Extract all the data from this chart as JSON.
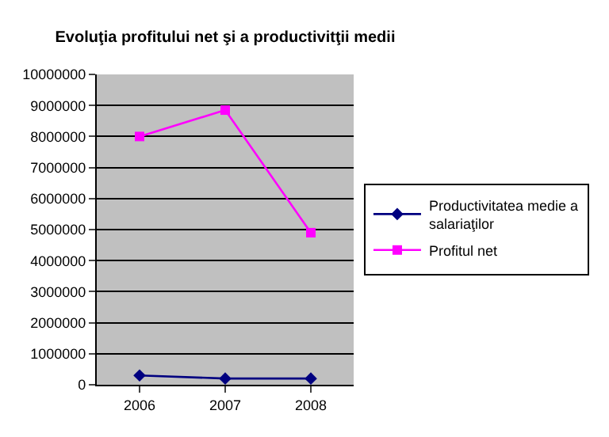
{
  "chart_data": {
    "type": "line",
    "title": "Evoluţia profitului net şi a productivitţii medii",
    "categories": [
      "2006",
      "2007",
      "2008"
    ],
    "series": [
      {
        "name": "Productivitatea medie a salariaţilor",
        "color": "#000080",
        "marker": "diamond",
        "values": [
          300000,
          200000,
          200000
        ]
      },
      {
        "name": "Profitul net",
        "color": "#ff00ff",
        "marker": "square",
        "values": [
          8000000,
          8850000,
          4900000
        ]
      }
    ],
    "ylim": [
      0,
      10000000
    ],
    "yticks": [
      0,
      1000000,
      2000000,
      3000000,
      4000000,
      5000000,
      6000000,
      7000000,
      8000000,
      9000000,
      10000000
    ],
    "grid": "y",
    "legend": "right",
    "line_style": "solid"
  }
}
